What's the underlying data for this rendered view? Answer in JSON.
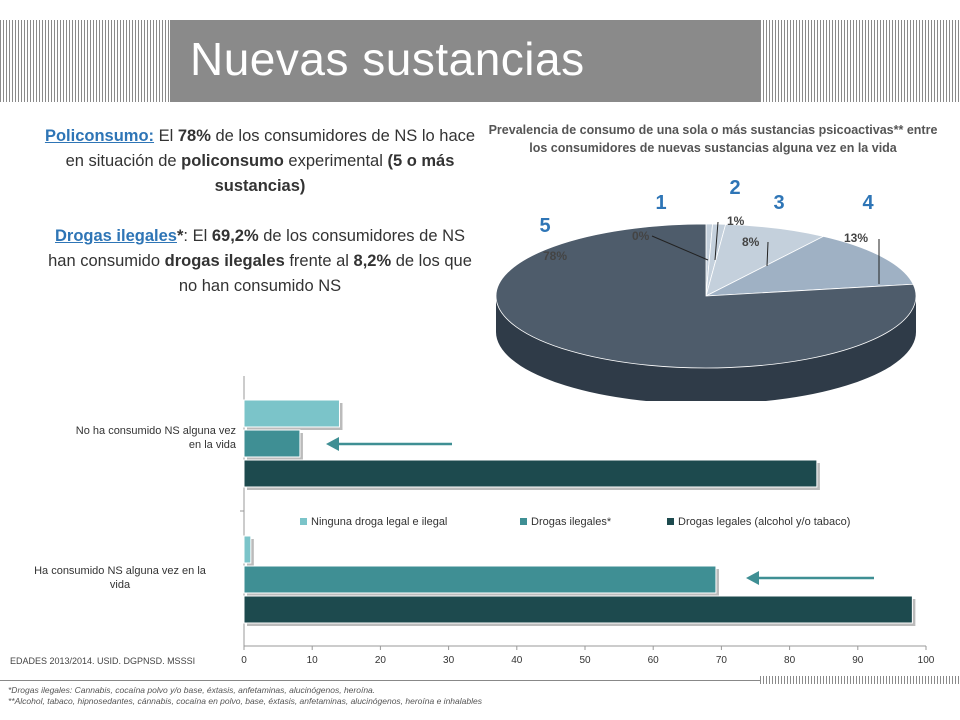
{
  "header": {
    "title": "Nuevas sustancias"
  },
  "text": {
    "p1_link": "Policonsumo:",
    "p1_a": " El ",
    "p1_pct": "78%",
    "p1_b": " de los consumidores de NS lo hace en situación de ",
    "p1_bold": "policonsumo",
    "p1_c": " experimental ",
    "p1_bold2": "(5 o más sustancias)",
    "p2_link": "Drogas ilegales",
    "p2_star": "*",
    "p2_a": ": El ",
    "p2_pct": "69,2%",
    "p2_b": " de los consumidores de NS han consumido ",
    "p2_bold": "drogas ilegales",
    "p2_c": " frente al ",
    "p2_pct2": "8,2%",
    "p2_d": " de los que no han consumido NS"
  },
  "source": "EDADES 2013/2014. USID. DGPNSD. MSSSI",
  "footnotes": [
    "*Drogas ilegales: Cannabis, cocaína polvo y/o base, éxtasis, anfetaminas, alucinógenos, heroína.",
    "**Alcohol, tabaco, hipnosedantes, cánnabis, cocaína en polvo, base, éxtasis, anfetaminas, alucinógenos, heroína e inhalables"
  ],
  "colors": {
    "teal_light": "#7bc4c9",
    "teal_mid": "#3f8f94",
    "teal_dark": "#1d4a4e",
    "pie_dark": "#4e5c6b",
    "pie_mid": "#9fb1c4",
    "pie_light": "#c4d0dc",
    "accent_blue": "#2e75b6"
  },
  "chart_data": [
    {
      "type": "pie",
      "title": "Prevalencia de consumo de una sola o más sustancias psicoactivas** entre los consumidores de nuevas sustancias alguna vez en la vida",
      "slices": [
        {
          "category": "1",
          "label": "0%",
          "value": 0.5
        },
        {
          "category": "2",
          "label": "1%",
          "value": 1
        },
        {
          "category": "3",
          "label": "8%",
          "value": 8
        },
        {
          "category": "4",
          "label": "13%",
          "value": 13
        },
        {
          "category": "5",
          "label": "78%",
          "value": 78
        }
      ]
    },
    {
      "type": "bar",
      "orientation": "horizontal",
      "categories": [
        "No ha consumido NS alguna vez en la vida",
        "Ha consumido NS alguna vez en la vida"
      ],
      "series": [
        {
          "name": "Ninguna droga legal e ilegal",
          "values": [
            14,
            1
          ]
        },
        {
          "name": "Drogas ilegales*",
          "values": [
            8.2,
            69.2
          ]
        },
        {
          "name": "Drogas legales (alcohol y/o tabaco)",
          "values": [
            84,
            98
          ]
        }
      ],
      "xlim": [
        0,
        100
      ],
      "xticks": [
        0,
        10,
        20,
        30,
        40,
        50,
        60,
        70,
        80,
        90,
        100
      ],
      "legend": "inside-right"
    }
  ]
}
